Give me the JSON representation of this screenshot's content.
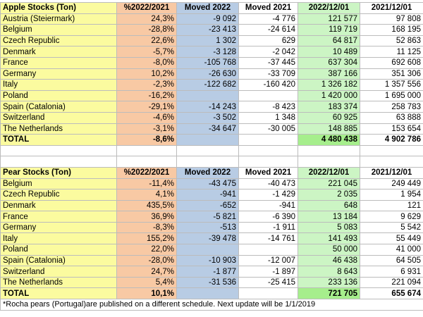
{
  "apple": {
    "header": [
      "Apple Stocks (Ton)",
      "%2022/2021",
      "Moved 2022",
      "Moved 2021",
      "2022/12/01",
      "2021/12/01"
    ],
    "rows": [
      [
        "Austria (Steiermark)",
        "24,3%",
        "-9 092",
        "-4 776",
        "121 577",
        "97 808"
      ],
      [
        "Belgium",
        "-28,8%",
        "-23 413",
        "-24 614",
        "119 719",
        "168 195"
      ],
      [
        "Czech Republic",
        "22,6%",
        "1 302",
        "629",
        "64 817",
        "52 863"
      ],
      [
        "Denmark",
        "-5,7%",
        "-3 128",
        "-2 042",
        "10 489",
        "11 125"
      ],
      [
        "France",
        "-8,0%",
        "-105 768",
        "-37 445",
        "637 304",
        "692 608"
      ],
      [
        "Germany",
        "10,2%",
        "-26 630",
        "-33 709",
        "387 166",
        "351 306"
      ],
      [
        "Italy",
        "-2,3%",
        "-122 682",
        "-160 420",
        "1 326 182",
        "1 357 556"
      ],
      [
        "Poland",
        "-16,2%",
        null,
        null,
        "1 420 000",
        "1 695 000"
      ],
      [
        "Spain (Catalonia)",
        "-29,1%",
        "-14 243",
        "-8 423",
        "183 374",
        "258 783"
      ],
      [
        "Switzerland",
        "-4,6%",
        "-3 502",
        "1 348",
        "60 925",
        "63 888"
      ],
      [
        "The Netherlands",
        "-3,1%",
        "-34 647",
        "-30 005",
        "148 885",
        "153 654"
      ]
    ],
    "total": [
      "TOTAL",
      "-8,6%",
      null,
      null,
      "4 480 438",
      "4 902 786"
    ]
  },
  "pear": {
    "header": [
      "Pear Stocks (Ton)",
      "%2022/2021",
      "Moved 2022",
      "Moved 2021",
      "2022/12/01",
      "2021/12/01"
    ],
    "rows": [
      [
        "Belgium",
        "-11,4%",
        "-43 475",
        "-40 473",
        "221 045",
        "249 449"
      ],
      [
        "Czech Republic",
        "4,1%",
        "-941",
        "-1 429",
        "2 035",
        "1 954"
      ],
      [
        "Denmark",
        "435,5%",
        "-652",
        "-941",
        "648",
        "121"
      ],
      [
        "France",
        "36,9%",
        "-5 821",
        "-6 390",
        "13 184",
        "9 629"
      ],
      [
        "Germany",
        "-8,3%",
        "-513",
        "-1 911",
        "5 083",
        "5 542"
      ],
      [
        "Italy",
        "155,2%",
        "-39 478",
        "-14 761",
        "141 493",
        "55 449"
      ],
      [
        "Poland",
        "22,0%",
        null,
        null,
        "50 000",
        "41 000"
      ],
      [
        "Spain (Catalonia)",
        "-28,0%",
        "-10 903",
        "-12 007",
        "46 438",
        "64 505"
      ],
      [
        "Switzerland",
        "24,7%",
        "-1 877",
        "-1 897",
        "8 643",
        "6 931"
      ],
      [
        "The Netherlands",
        "5,4%",
        "-31 536",
        "-25 415",
        "233 136",
        "221 094"
      ]
    ],
    "total": [
      "TOTAL",
      "10,1%",
      null,
      null,
      "721 705",
      "655 674"
    ]
  },
  "footnote": "*Rocha pears (Portugal)are published on a different schedule. Next update will be 1/1/2019"
}
